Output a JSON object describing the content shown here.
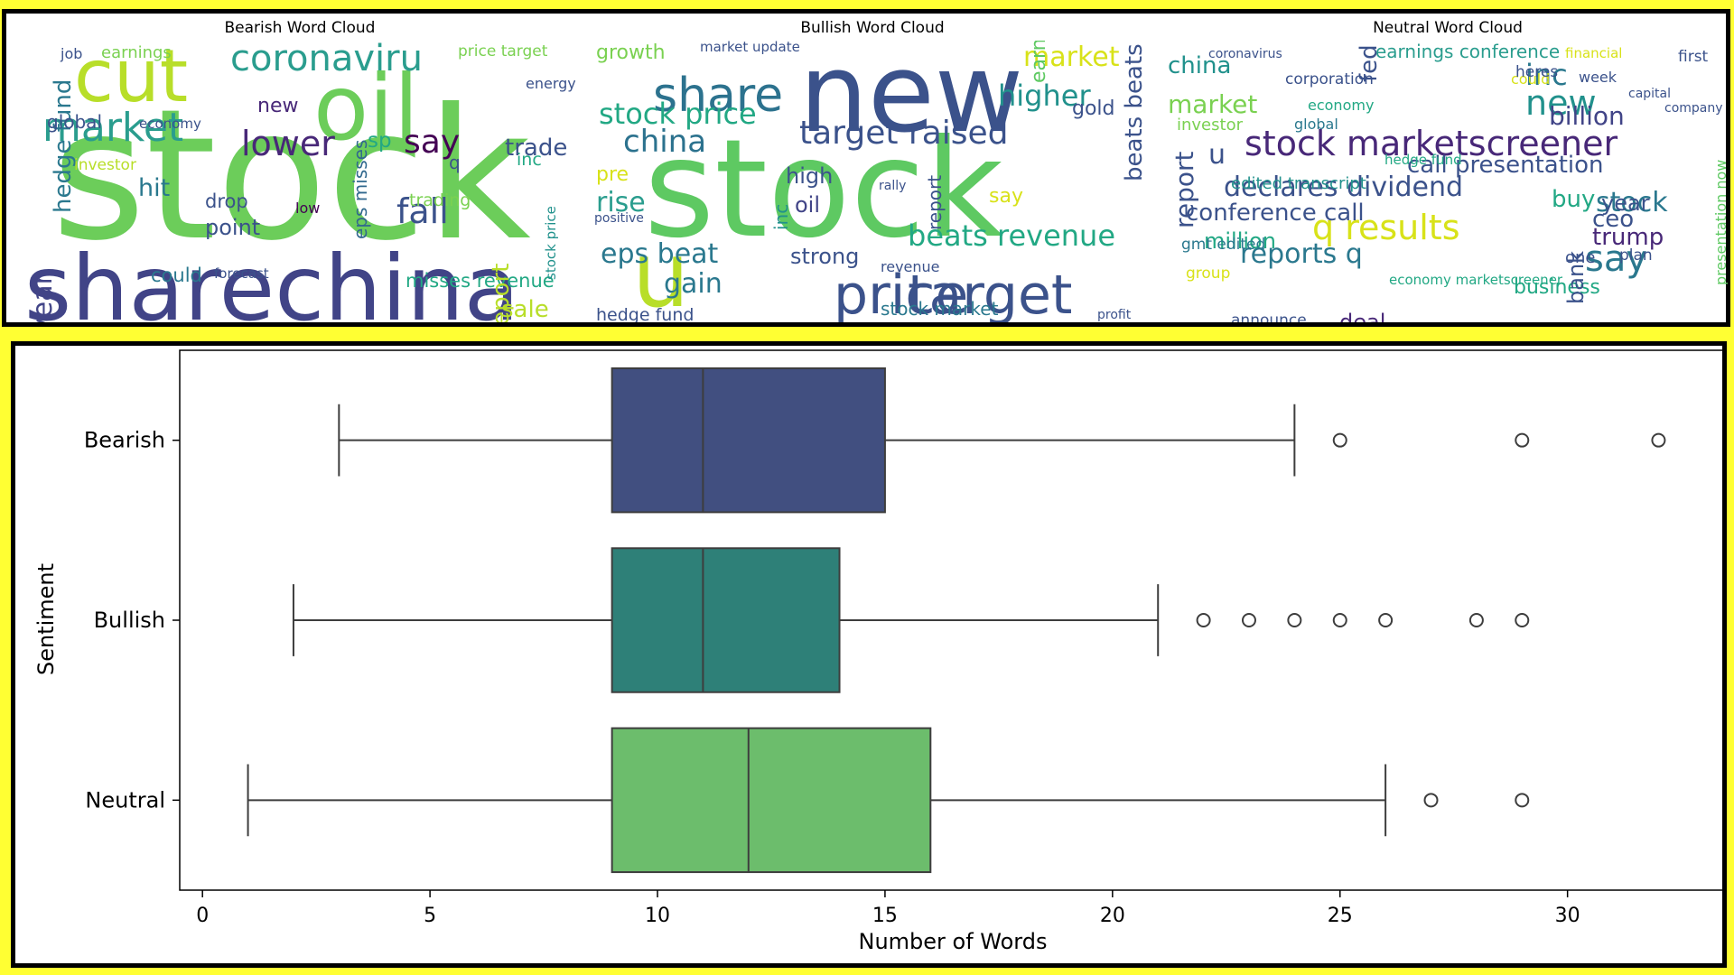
{
  "word_clouds": [
    {
      "title": "Bearish Word Cloud",
      "words": [
        {
          "text": "stock",
          "color": "#6ccd5a"
        },
        {
          "text": "sharechina",
          "color": "#414487"
        },
        {
          "text": "oil",
          "color": "#6ccd5a"
        },
        {
          "text": "cut",
          "color": "#b8de29"
        },
        {
          "text": "coronaviru",
          "color": "#2a9d8e"
        },
        {
          "text": "market",
          "color": "#2a9d8e"
        },
        {
          "text": "lower",
          "color": "#482878"
        },
        {
          "text": "fall",
          "color": "#3b528b"
        },
        {
          "text": "say",
          "color": "#440154"
        },
        {
          "text": "trade",
          "color": "#3b528b"
        },
        {
          "text": "hedge fund",
          "color": "#2a788e"
        },
        {
          "text": "year",
          "color": "#414487"
        },
        {
          "text": "global",
          "color": "#3b528b"
        },
        {
          "text": "hit",
          "color": "#2a788e"
        },
        {
          "text": "point",
          "color": "#3b528b"
        },
        {
          "text": "drop",
          "color": "#3b528b"
        },
        {
          "text": "misses revenue",
          "color": "#22a884"
        },
        {
          "text": "eps misses",
          "color": "#31688e"
        },
        {
          "text": "report",
          "color": "#b8de29"
        },
        {
          "text": "sale",
          "color": "#b8de29"
        },
        {
          "text": "earnings",
          "color": "#7ad151"
        },
        {
          "text": "price target",
          "color": "#7ad151"
        },
        {
          "text": "trading",
          "color": "#7ad151"
        },
        {
          "text": "could",
          "color": "#2a788e"
        },
        {
          "text": "forecast",
          "color": "#3b528b"
        },
        {
          "text": "energy",
          "color": "#3b528b"
        },
        {
          "text": "new",
          "color": "#482878"
        },
        {
          "text": "inc",
          "color": "#22a884"
        },
        {
          "text": "low",
          "color": "#440154"
        },
        {
          "text": "economy",
          "color": "#3b528b"
        },
        {
          "text": "investor",
          "color": "#b8de29"
        },
        {
          "text": "stock price",
          "color": "#21918c"
        },
        {
          "text": "job",
          "color": "#3b528b"
        },
        {
          "text": "sp",
          "color": "#22a884"
        },
        {
          "text": "q",
          "color": "#3b528b"
        }
      ]
    },
    {
      "title": "Bullish Word Cloud",
      "words": [
        {
          "text": "new",
          "color": "#3b528b"
        },
        {
          "text": "stock",
          "color": "#5ec962"
        },
        {
          "text": "u",
          "color": "#b8de29"
        },
        {
          "text": "price",
          "color": "#3b528b"
        },
        {
          "text": "target",
          "color": "#3b528b"
        },
        {
          "text": "share",
          "color": "#2c728e"
        },
        {
          "text": "stock price",
          "color": "#22a884"
        },
        {
          "text": "china",
          "color": "#2c728e"
        },
        {
          "text": "target raised",
          "color": "#3b528b"
        },
        {
          "text": "market",
          "color": "#d8e219"
        },
        {
          "text": "higher",
          "color": "#21918c"
        },
        {
          "text": "beats revenue",
          "color": "#22a884"
        },
        {
          "text": "eps beat",
          "color": "#2a788e"
        },
        {
          "text": "gain",
          "color": "#2a788e"
        },
        {
          "text": "rise",
          "color": "#2a9d8e"
        },
        {
          "text": "beats beats",
          "color": "#3b528b"
        },
        {
          "text": "growth",
          "color": "#7ad151"
        },
        {
          "text": "high",
          "color": "#3b528b"
        },
        {
          "text": "oil",
          "color": "#414487"
        },
        {
          "text": "strong",
          "color": "#3b528b"
        },
        {
          "text": "hedge fund",
          "color": "#3b528b"
        },
        {
          "text": "stock market",
          "color": "#2a788e"
        },
        {
          "text": "earnings",
          "color": "#5ec962"
        },
        {
          "text": "gold",
          "color": "#3b528b"
        },
        {
          "text": "inc",
          "color": "#21918c"
        },
        {
          "text": "report",
          "color": "#3b528b"
        },
        {
          "text": "market update",
          "color": "#3b528b"
        },
        {
          "text": "pre",
          "color": "#d8e219"
        },
        {
          "text": "say",
          "color": "#d8e219"
        },
        {
          "text": "revenue",
          "color": "#3b528b"
        },
        {
          "text": "profit",
          "color": "#3b528b"
        },
        {
          "text": "rally",
          "color": "#3b528b"
        },
        {
          "text": "positive",
          "color": "#3b528b"
        }
      ]
    },
    {
      "title": "Neutral Word Cloud",
      "words": [
        {
          "text": "stock marketscreener",
          "color": "#482878"
        },
        {
          "text": "declares dividend",
          "color": "#3b528b"
        },
        {
          "text": "q results",
          "color": "#d8e219"
        },
        {
          "text": "reports q",
          "color": "#2a788e"
        },
        {
          "text": "say",
          "color": "#2a788e"
        },
        {
          "text": "conference call",
          "color": "#3b528b"
        },
        {
          "text": "call presentation",
          "color": "#3b528b"
        },
        {
          "text": "new",
          "color": "#21918c"
        },
        {
          "text": "inc",
          "color": "#2a788e"
        },
        {
          "text": "billion",
          "color": "#414487"
        },
        {
          "text": "market",
          "color": "#7ad151"
        },
        {
          "text": "china",
          "color": "#21918c"
        },
        {
          "text": "stock",
          "color": "#2a788e"
        },
        {
          "text": "trump",
          "color": "#482878"
        },
        {
          "text": "deal",
          "color": "#482878"
        },
        {
          "text": "million",
          "color": "#22a884"
        },
        {
          "text": "earnings conference",
          "color": "#2a9d8e"
        },
        {
          "text": "buy",
          "color": "#22a884"
        },
        {
          "text": "year",
          "color": "#3b528b"
        },
        {
          "text": "ceo",
          "color": "#3b528b"
        },
        {
          "text": "fed",
          "color": "#3b528b"
        },
        {
          "text": "report",
          "color": "#3b528b"
        },
        {
          "text": "u",
          "color": "#3b528b"
        },
        {
          "text": "business",
          "color": "#22a884"
        },
        {
          "text": "edited transcript",
          "color": "#21918c"
        },
        {
          "text": "corporation",
          "color": "#3b528b"
        },
        {
          "text": "investor",
          "color": "#7ad151"
        },
        {
          "text": "gmt edited",
          "color": "#2a788e"
        },
        {
          "text": "announce",
          "color": "#3b528b"
        },
        {
          "text": "group",
          "color": "#d8e219"
        },
        {
          "text": "bank",
          "color": "#3b528b"
        },
        {
          "text": "plan",
          "color": "#3b528b"
        },
        {
          "text": "one",
          "color": "#3b528b"
        },
        {
          "text": "first",
          "color": "#3b528b"
        },
        {
          "text": "financial",
          "color": "#d8e219"
        },
        {
          "text": "coronavirus",
          "color": "#3b528b"
        },
        {
          "text": "hedge fund",
          "color": "#22a884"
        },
        {
          "text": "week",
          "color": "#3b528b"
        },
        {
          "text": "capital",
          "color": "#3b528b"
        },
        {
          "text": "economy",
          "color": "#22a884"
        },
        {
          "text": "global",
          "color": "#2a788e"
        },
        {
          "text": "could",
          "color": "#d8e219"
        },
        {
          "text": "economy marketscreener",
          "color": "#22a884"
        },
        {
          "text": "heres",
          "color": "#3b528b"
        },
        {
          "text": "company",
          "color": "#3b528b"
        },
        {
          "text": "presentation now",
          "color": "#5ec962"
        }
      ]
    }
  ],
  "chart_data": {
    "type": "boxplot",
    "orientation": "horizontal",
    "xlabel": "Number of Words",
    "ylabel": "Sentiment",
    "xlim": [
      -0.5,
      33.5
    ],
    "xticks": [
      0,
      5,
      10,
      15,
      20,
      25,
      30
    ],
    "categories": [
      "Bearish",
      "Bullish",
      "Neutral"
    ],
    "series": [
      {
        "name": "Bearish",
        "color": "#414f80",
        "whisker_low": 3,
        "q1": 9,
        "median": 11,
        "q3": 15,
        "whisker_high": 24,
        "outliers": [
          25,
          29,
          32
        ]
      },
      {
        "name": "Bullish",
        "color": "#2e8078",
        "whisker_low": 2,
        "q1": 9,
        "median": 11,
        "q3": 14,
        "whisker_high": 21,
        "outliers": [
          22,
          23,
          24,
          25,
          26,
          28,
          29
        ]
      },
      {
        "name": "Neutral",
        "color": "#6cbd6c",
        "whisker_low": 1,
        "q1": 9,
        "median": 12,
        "q3": 16,
        "whisker_high": 26,
        "outliers": [
          27,
          29
        ]
      }
    ]
  }
}
